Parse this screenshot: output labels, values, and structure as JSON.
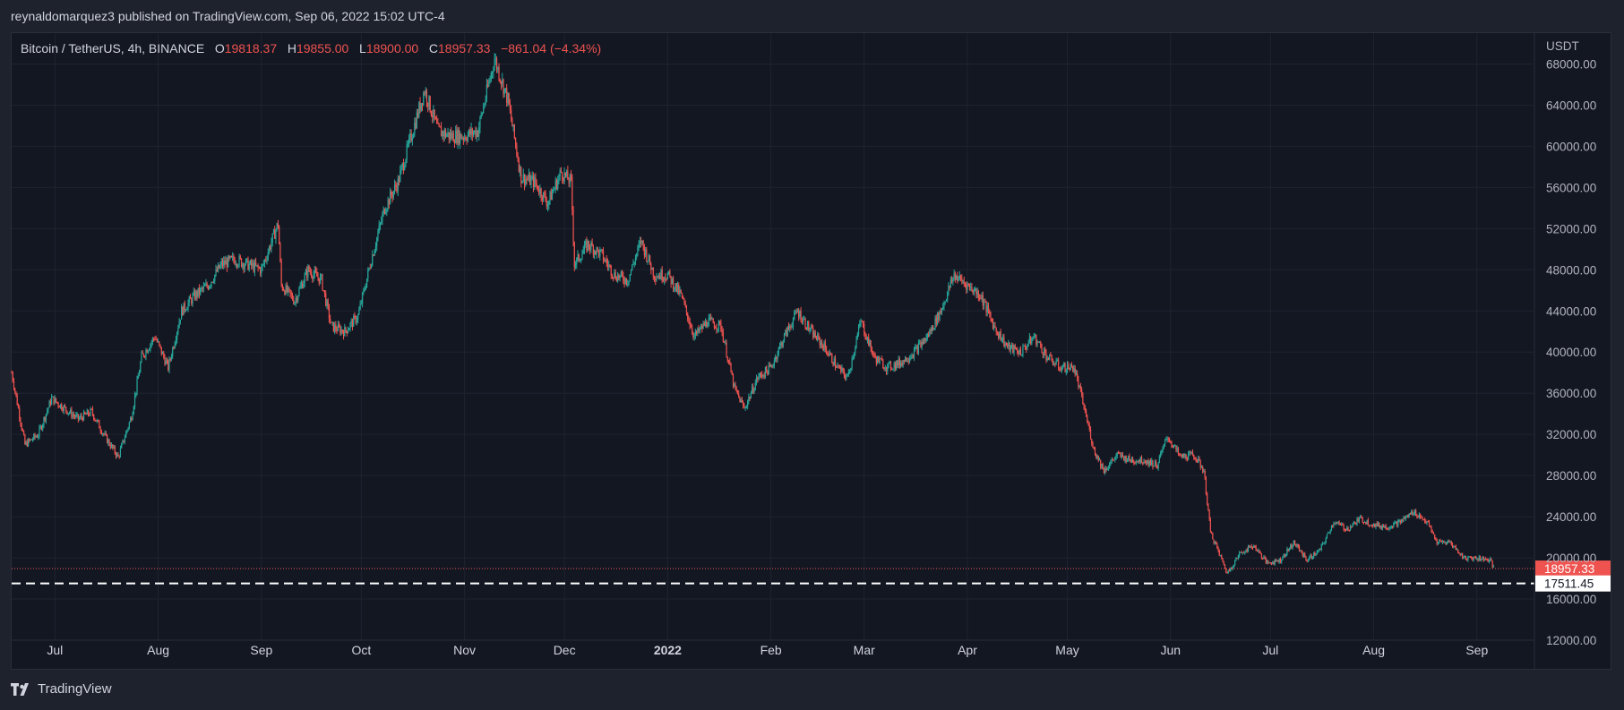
{
  "header": {
    "text": "reynaldomarquez3 published on TradingView.com, Sep 06, 2022 15:02 UTC-4"
  },
  "ohlc": {
    "symbol": "Bitcoin / TetherUS, 4h, BINANCE",
    "o_label": "O",
    "o_value": "19818.37",
    "h_label": "H",
    "h_value": "19855.00",
    "l_label": "L",
    "l_value": "18900.00",
    "c_label": "C",
    "c_value": "18957.33",
    "change": "−861.04 (−4.34%)"
  },
  "footer": {
    "brand": "TradingView"
  },
  "colors": {
    "up": "#26a69a",
    "down": "#ef5350",
    "grid": "#1f2330",
    "background": "#131722",
    "page": "#1e222d"
  },
  "chart_data": {
    "type": "line",
    "title": "Bitcoin / TetherUS, 4h, BINANCE",
    "ylabel": "USDT",
    "ylim": [
      12000,
      71000
    ],
    "y_ticks": [
      "68000.00",
      "64000.00",
      "60000.00",
      "56000.00",
      "52000.00",
      "48000.00",
      "44000.00",
      "40000.00",
      "36000.00",
      "32000.00",
      "28000.00",
      "24000.00",
      "20000.00",
      "16000.00",
      "12000.00"
    ],
    "x_ticks": [
      {
        "label": "Jul",
        "date": "2021-07-01"
      },
      {
        "label": "Aug",
        "date": "2021-08-01"
      },
      {
        "label": "Sep",
        "date": "2021-09-01"
      },
      {
        "label": "Oct",
        "date": "2021-10-01"
      },
      {
        "label": "Nov",
        "date": "2021-11-01"
      },
      {
        "label": "Dec",
        "date": "2021-12-01"
      },
      {
        "label": "2022",
        "date": "2022-01-01",
        "bold": true
      },
      {
        "label": "Feb",
        "date": "2022-02-01"
      },
      {
        "label": "Mar",
        "date": "2022-03-01"
      },
      {
        "label": "Apr",
        "date": "2022-04-01"
      },
      {
        "label": "May",
        "date": "2022-05-01"
      },
      {
        "label": "Jun",
        "date": "2022-06-01"
      },
      {
        "label": "Jul",
        "date": "2022-07-01"
      },
      {
        "label": "Aug",
        "date": "2022-08-01"
      },
      {
        "label": "Sep",
        "date": "2022-09-01"
      }
    ],
    "xlim": [
      "2021-06-18",
      "2022-09-18"
    ],
    "grid": true,
    "series": [
      {
        "values": [
          [
            "2021-06-18",
            38000
          ],
          [
            "2021-06-22",
            31000
          ],
          [
            "2021-06-26",
            32000
          ],
          [
            "2021-06-30",
            35500
          ],
          [
            "2021-07-04",
            34500
          ],
          [
            "2021-07-08",
            33500
          ],
          [
            "2021-07-12",
            34200
          ],
          [
            "2021-07-16",
            31800
          ],
          [
            "2021-07-20",
            29800
          ],
          [
            "2021-07-24",
            33800
          ],
          [
            "2021-07-27",
            39500
          ],
          [
            "2021-07-31",
            41500
          ],
          [
            "2021-08-04",
            38500
          ],
          [
            "2021-08-08",
            44000
          ],
          [
            "2021-08-12",
            45500
          ],
          [
            "2021-08-16",
            46500
          ],
          [
            "2021-08-20",
            48500
          ],
          [
            "2021-08-24",
            49000
          ],
          [
            "2021-08-28",
            48500
          ],
          [
            "2021-09-01",
            48000
          ],
          [
            "2021-09-06",
            52500
          ],
          [
            "2021-09-07",
            46500
          ],
          [
            "2021-09-11",
            45000
          ],
          [
            "2021-09-15",
            48000
          ],
          [
            "2021-09-19",
            47000
          ],
          [
            "2021-09-22",
            42500
          ],
          [
            "2021-09-26",
            42000
          ],
          [
            "2021-09-30",
            43500
          ],
          [
            "2021-10-04",
            49000
          ],
          [
            "2021-10-08",
            54000
          ],
          [
            "2021-10-12",
            56500
          ],
          [
            "2021-10-16",
            61000
          ],
          [
            "2021-10-20",
            65500
          ],
          [
            "2021-10-24",
            61500
          ],
          [
            "2021-10-28",
            61000
          ],
          [
            "2021-11-01",
            61000
          ],
          [
            "2021-11-05",
            61500
          ],
          [
            "2021-11-10",
            68500
          ],
          [
            "2021-11-14",
            64500
          ],
          [
            "2021-11-18",
            57000
          ],
          [
            "2021-11-22",
            56500
          ],
          [
            "2021-11-26",
            54500
          ],
          [
            "2021-11-30",
            57500
          ],
          [
            "2021-12-03",
            56500
          ],
          [
            "2021-12-04",
            48500
          ],
          [
            "2021-12-08",
            50500
          ],
          [
            "2021-12-12",
            49500
          ],
          [
            "2021-12-16",
            47500
          ],
          [
            "2021-12-20",
            47000
          ],
          [
            "2021-12-24",
            50800
          ],
          [
            "2021-12-28",
            47500
          ],
          [
            "2022-01-01",
            47500
          ],
          [
            "2022-01-05",
            45500
          ],
          [
            "2022-01-09",
            41500
          ],
          [
            "2022-01-13",
            43000
          ],
          [
            "2022-01-17",
            42500
          ],
          [
            "2022-01-21",
            36500
          ],
          [
            "2022-01-24",
            34500
          ],
          [
            "2022-01-28",
            37500
          ],
          [
            "2022-02-01",
            38500
          ],
          [
            "2022-02-05",
            41500
          ],
          [
            "2022-02-09",
            44000
          ],
          [
            "2022-02-13",
            42000
          ],
          [
            "2022-02-17",
            40500
          ],
          [
            "2022-02-21",
            38500
          ],
          [
            "2022-02-24",
            37500
          ],
          [
            "2022-02-28",
            43000
          ],
          [
            "2022-03-04",
            39500
          ],
          [
            "2022-03-08",
            38500
          ],
          [
            "2022-03-12",
            39000
          ],
          [
            "2022-03-16",
            40000
          ],
          [
            "2022-03-20",
            41500
          ],
          [
            "2022-03-24",
            44000
          ],
          [
            "2022-03-28",
            47500
          ],
          [
            "2022-04-01",
            46500
          ],
          [
            "2022-04-05",
            45500
          ],
          [
            "2022-04-09",
            42500
          ],
          [
            "2022-04-13",
            40500
          ],
          [
            "2022-04-17",
            40000
          ],
          [
            "2022-04-21",
            41500
          ],
          [
            "2022-04-25",
            39500
          ],
          [
            "2022-04-29",
            38500
          ],
          [
            "2022-05-03",
            38500
          ],
          [
            "2022-05-05",
            36000
          ],
          [
            "2022-05-09",
            30500
          ],
          [
            "2022-05-12",
            28500
          ],
          [
            "2022-05-16",
            30000
          ],
          [
            "2022-05-20",
            29500
          ],
          [
            "2022-05-24",
            29500
          ],
          [
            "2022-05-28",
            29000
          ],
          [
            "2022-05-31",
            31800
          ],
          [
            "2022-06-04",
            29800
          ],
          [
            "2022-06-08",
            30000
          ],
          [
            "2022-06-11",
            28500
          ],
          [
            "2022-06-13",
            22500
          ],
          [
            "2022-06-18",
            18500
          ],
          [
            "2022-06-22",
            20500
          ],
          [
            "2022-06-26",
            21200
          ],
          [
            "2022-06-30",
            19500
          ],
          [
            "2022-07-04",
            19800
          ],
          [
            "2022-07-08",
            21500
          ],
          [
            "2022-07-12",
            19800
          ],
          [
            "2022-07-16",
            20800
          ],
          [
            "2022-07-20",
            23500
          ],
          [
            "2022-07-24",
            22800
          ],
          [
            "2022-07-28",
            23800
          ],
          [
            "2022-08-01",
            23200
          ],
          [
            "2022-08-05",
            23000
          ],
          [
            "2022-08-09",
            23500
          ],
          [
            "2022-08-13",
            24500
          ],
          [
            "2022-08-17",
            23500
          ],
          [
            "2022-08-20",
            21500
          ],
          [
            "2022-08-24",
            21500
          ],
          [
            "2022-08-28",
            20000
          ],
          [
            "2022-09-01",
            20000
          ],
          [
            "2022-09-05",
            19800
          ],
          [
            "2022-09-06",
            18957
          ]
        ]
      }
    ],
    "current_price": {
      "value": 18957.33,
      "label": "18957.33"
    },
    "support_line": {
      "value": 17511.45,
      "label": "17511.45"
    }
  }
}
